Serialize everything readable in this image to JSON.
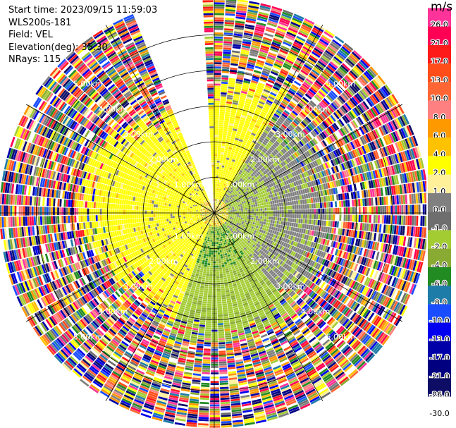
{
  "header": {
    "start_time": "Start time: 2023/09/15 11:59:03",
    "instrument": "WLS200s-181",
    "field": "Field: VEL",
    "elevation": "Elevation(deg): 35.30",
    "nrays": "NRays: 115"
  },
  "colorbar": {
    "unit": "m/s",
    "ticks": [
      "26.0",
      "21.0",
      "17.0",
      "13.0",
      "10.0",
      "8.0",
      "6.0",
      "4.0",
      "2.0",
      "1.0",
      "0.0",
      "-1.0",
      "-2.0",
      "-4.0",
      "-6.0",
      "-8.0",
      "-10.0",
      "-13.0",
      "-17.0",
      "-21.0",
      "-26.0",
      "-30.0"
    ],
    "colors": [
      "#ff3399",
      "#ff0055",
      "#ff1a1a",
      "#ff4d1a",
      "#ff6633",
      "#ff8080",
      "#ff9900",
      "#ffc200",
      "#ffff00",
      "#fff099",
      "#808080",
      "#6e6e6e",
      "#a3cc33",
      "#8aab33",
      "#228b22",
      "#1e7ca8",
      "#1a4dff",
      "#0000ee",
      "#0000a8",
      "#000080",
      "#0d0d66",
      "#ffffff"
    ]
  },
  "chart_data": {
    "type": "heatmap",
    "title": "",
    "projection": "polar PPI",
    "field": "VEL",
    "units": "m/s",
    "nrays": 115,
    "elevation_deg": 35.3,
    "range_rings_km": [
      1.0,
      2.0,
      3.0,
      4.0,
      5.0
    ],
    "ring_labels": [
      "1.00km",
      "2.00km",
      "3.00km",
      "4.00km",
      "5.00km"
    ],
    "max_range_km": 6.0,
    "colorscale_bounds": [
      -30.0,
      -26.0,
      -21.0,
      -17.0,
      -13.0,
      -10.0,
      -8.0,
      -6.0,
      -4.0,
      -2.0,
      -1.0,
      0.0,
      1.0,
      2.0,
      4.0,
      6.0,
      8.0,
      10.0,
      13.0,
      17.0,
      21.0,
      26.0
    ],
    "data_gap_azimuth_deg": [
      338,
      358
    ],
    "dominant_velocity": {
      "north_west_near": 2.0,
      "east_near": -1.0,
      "south_near": -2.0,
      "far_ranges": "noise"
    }
  }
}
